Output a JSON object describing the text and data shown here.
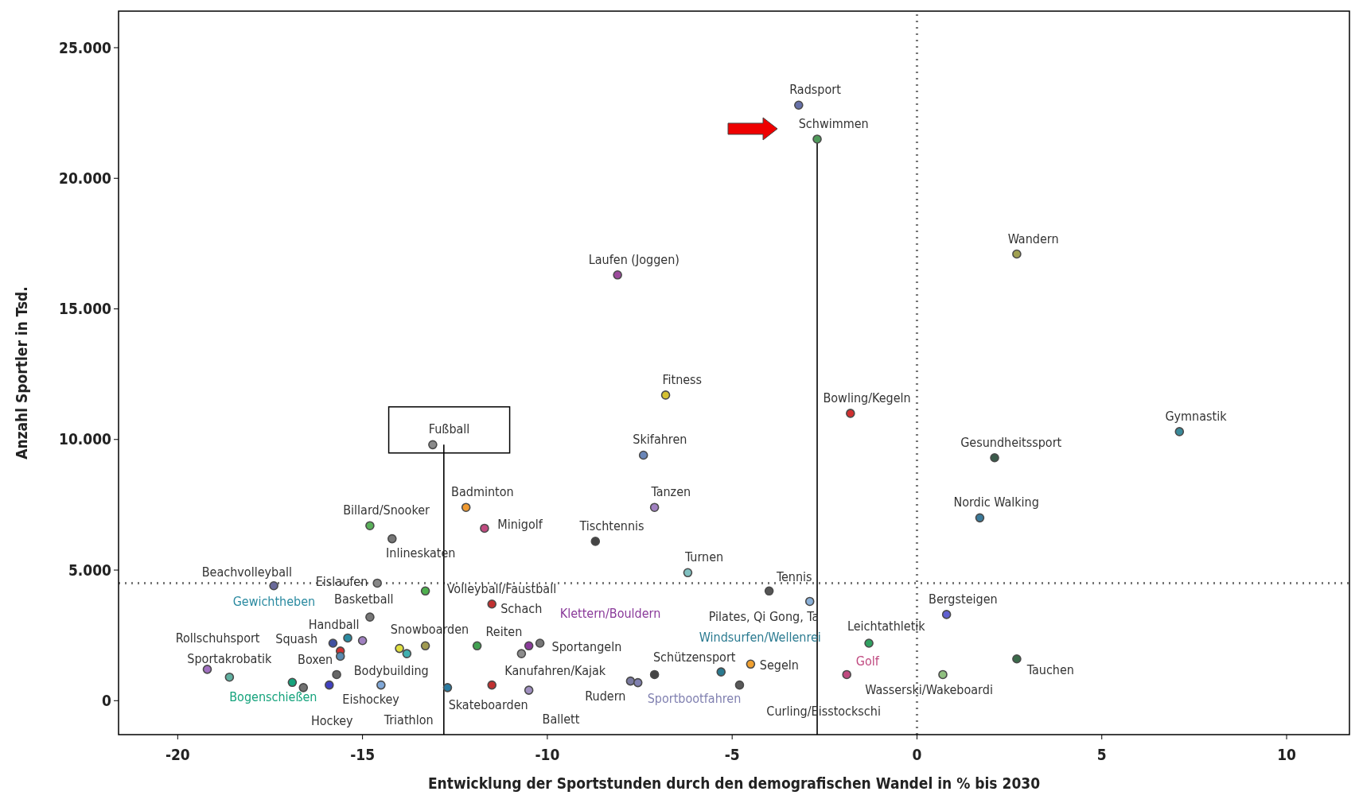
{
  "chart_data": {
    "type": "scatter",
    "xlabel": "Entwicklung der Sportstunden durch den demografischen Wandel in % bis 2030",
    "ylabel": "Anzahl Sportler in Tsd.",
    "xlim": [
      -21.6,
      11.7
    ],
    "ylim": [
      -1300,
      26400
    ],
    "xticks": [
      -20,
      -15,
      -10,
      -5,
      0,
      5,
      10
    ],
    "yticks": [
      {
        "value": 0,
        "label": "0"
      },
      {
        "value": 5000,
        "label": "5.000"
      },
      {
        "value": 10000,
        "label": "10.000"
      },
      {
        "value": 15000,
        "label": "15.000"
      },
      {
        "value": 20000,
        "label": "20.000"
      },
      {
        "value": 25000,
        "label": "25.000"
      }
    ],
    "marker": "circle",
    "grid": false,
    "legend": false,
    "ref_lines": [
      {
        "axis": "y",
        "value": 4500,
        "color": "#777777",
        "line_style": "dotted"
      },
      {
        "axis": "x",
        "value": 0,
        "color": "#777777",
        "line_style": "dotted"
      },
      {
        "axis": "x",
        "value": -12.8,
        "color": "#000000",
        "line_style": "solid"
      },
      {
        "axis": "x",
        "value": -2.7,
        "color": "#000000",
        "line_style": "solid"
      }
    ],
    "series": [
      {
        "name": "Radsport",
        "color": "#6670a8",
        "x": [
          -3.2
        ],
        "values": [
          22800
        ]
      },
      {
        "name": "Schwimmen",
        "color": "#4e9a5a",
        "x": [
          -2.7
        ],
        "values": [
          21500
        ]
      },
      {
        "name": "Wandern",
        "color": "#a0a050",
        "x": [
          2.7
        ],
        "values": [
          17100
        ]
      },
      {
        "name": "Laufen (Joggen)",
        "color": "#9c4a9c",
        "x": [
          -8.1
        ],
        "values": [
          16300
        ]
      },
      {
        "name": "Fitness",
        "color": "#d4c030",
        "x": [
          -6.8
        ],
        "values": [
          11700
        ]
      },
      {
        "name": "Bowling/Kegeln",
        "color": "#d03030",
        "x": [
          -1.8
        ],
        "values": [
          11000
        ]
      },
      {
        "name": "Gymnastik",
        "color": "#3a8a9a",
        "x": [
          7.1
        ],
        "values": [
          10300
        ]
      },
      {
        "name": "Skifahren",
        "color": "#6a86b8",
        "x": [
          -7.4
        ],
        "values": [
          9400
        ]
      },
      {
        "name": "Fußball",
        "color": "#8a8a8a",
        "x": [
          -13.1
        ],
        "values": [
          9800
        ]
      },
      {
        "name": "Gesundheitssport",
        "color": "#3a5a4a",
        "x": [
          2.1
        ],
        "values": [
          9300
        ]
      },
      {
        "name": "Nordic Walking",
        "color": "#3a7a9a",
        "x": [
          1.7
        ],
        "values": [
          7000
        ]
      },
      {
        "name": "Badminton",
        "color": "#f09a30",
        "x": [
          -12.2
        ],
        "values": [
          7400
        ]
      },
      {
        "name": "Tanzen",
        "color": "#a080c0",
        "x": [
          -7.1
        ],
        "values": [
          7400
        ]
      },
      {
        "name": "Minigolf",
        "color": "#c04a80",
        "x": [
          -11.7
        ],
        "values": [
          6600
        ]
      },
      {
        "name": "Billard/Snooker",
        "color": "#5ab05a",
        "x": [
          -14.8
        ],
        "values": [
          6700
        ]
      },
      {
        "name": "Inlineskaten",
        "color": "#777777",
        "x": [
          -14.2
        ],
        "values": [
          6200
        ]
      },
      {
        "name": "Tischtennis",
        "color": "#444444",
        "x": [
          -8.7
        ],
        "values": [
          6100
        ]
      },
      {
        "name": "Turnen",
        "color": "#80c0c0",
        "x": [
          -6.2
        ],
        "values": [
          4900
        ]
      },
      {
        "name": "Beachvolleyball",
        "color": "#6a6a9a",
        "x": [
          -17.4
        ],
        "values": [
          4400
        ]
      },
      {
        "name": "Eislaufen",
        "color": "#888888",
        "x": [
          -14.6
        ],
        "values": [
          4500
        ]
      },
      {
        "name": "Volleyball/Faustball",
        "color": "#4eb04e",
        "x": [
          -13.3
        ],
        "values": [
          4200
        ]
      },
      {
        "name": "Tennis",
        "color": "#555555",
        "x": [
          -4.0
        ],
        "values": [
          4200
        ]
      },
      {
        "name": "Pilates, Qi Gong, Ta",
        "color": "#8ab0d8",
        "x": [
          -2.9
        ],
        "values": [
          3800
        ]
      },
      {
        "name": "Schach",
        "color": "#c03030",
        "x": [
          -11.5
        ],
        "values": [
          3700
        ]
      },
      {
        "name": "Bergsteigen",
        "color": "#6060d0",
        "x": [
          0.8
        ],
        "values": [
          3300
        ]
      },
      {
        "name": "Basketball",
        "color": "#777777",
        "x": [
          -14.8
        ],
        "values": [
          3200
        ]
      },
      {
        "name": "Squash",
        "color": "#4050a0",
        "x": [
          -15.8
        ],
        "values": [
          2200
        ]
      },
      {
        "name": "Gewichtheben",
        "color": "#2a8aa0",
        "x": [
          -15.4
        ],
        "values": [
          2400
        ]
      },
      {
        "name": "Handball",
        "color": "#a080c0",
        "x": [
          -15.0
        ],
        "values": [
          2300
        ]
      },
      {
        "color": "#d03030",
        "x": [
          -15.6
        ],
        "values": [
          1900
        ]
      },
      {
        "name": "Boxen",
        "color": "#5a8ab0",
        "x": [
          -15.6
        ],
        "values": [
          1700
        ]
      },
      {
        "color": "#e0e040",
        "x": [
          -14.0
        ],
        "values": [
          2000
        ]
      },
      {
        "color": "#40b0b0",
        "x": [
          -13.8
        ],
        "values": [
          1800
        ]
      },
      {
        "name": "Snowboarden",
        "color": "#a09a50",
        "x": [
          -13.3
        ],
        "values": [
          2100
        ]
      },
      {
        "name": "Reiten",
        "color": "#40a050",
        "x": [
          -11.9
        ],
        "values": [
          2100
        ]
      },
      {
        "name": "Klettern/Bouldern",
        "color": "#8a3a9a",
        "x": [
          -10.5
        ],
        "values": [
          2100
        ]
      },
      {
        "name": "Sportangeln",
        "color": "#767676",
        "x": [
          -10.2
        ],
        "values": [
          2200
        ]
      },
      {
        "color": "#8c8c8c",
        "x": [
          -10.7
        ],
        "values": [
          1800
        ]
      },
      {
        "name": "Rollschuhsport",
        "color": "#a070c0",
        "x": [
          -19.2
        ],
        "values": [
          1200
        ]
      },
      {
        "name": "Sportakrobatik",
        "color": "#60b0a0",
        "x": [
          -18.6
        ],
        "values": [
          900
        ]
      },
      {
        "name": "Bogenschießen",
        "color": "#15a37c",
        "x": [
          -16.9
        ],
        "values": [
          700
        ]
      },
      {
        "name": "Hockey",
        "color": "#727272",
        "x": [
          -16.6
        ],
        "values": [
          500
        ]
      },
      {
        "name": "Bodybuilding",
        "color": "#666666",
        "x": [
          -15.7
        ],
        "values": [
          1000
        ]
      },
      {
        "name": "Eishockey",
        "color": "#4040c0",
        "x": [
          -15.9
        ],
        "values": [
          600
        ]
      },
      {
        "name": "Triathlon",
        "color": "#80a8d8",
        "x": [
          -14.5
        ],
        "values": [
          600
        ]
      },
      {
        "name": "Skateboarden",
        "color": "#2a7aa0",
        "x": [
          -12.7
        ],
        "values": [
          500
        ]
      },
      {
        "name": "Kanufahren/Kajak",
        "color": "#c03030",
        "x": [
          -11.5
        ],
        "values": [
          600
        ]
      },
      {
        "name": "Ballett",
        "color": "#a090c0",
        "x": [
          -10.5
        ],
        "values": [
          400
        ]
      },
      {
        "name": "Schützensport",
        "color": "#444444",
        "x": [
          -7.1
        ],
        "values": [
          1000
        ]
      },
      {
        "name": "Rudern",
        "color": "#7a7aa0",
        "x": [
          -7.75
        ],
        "values": [
          750
        ]
      },
      {
        "name": "Sportbootfahren",
        "color": "#8080b0",
        "x": [
          -7.55
        ],
        "values": [
          690
        ]
      },
      {
        "name": "Windsurfen/Wellenrei",
        "color": "#2a7a90",
        "x": [
          -5.3
        ],
        "values": [
          1100
        ]
      },
      {
        "name": "Segeln",
        "color": "#f0a030",
        "x": [
          -4.5
        ],
        "values": [
          1400
        ]
      },
      {
        "name": "Curling/Eisstockschi",
        "color": "#595959",
        "x": [
          -4.8
        ],
        "values": [
          600
        ]
      },
      {
        "name": "Leichtathletik",
        "color": "#30a060",
        "x": [
          -1.3
        ],
        "values": [
          2200
        ]
      },
      {
        "name": "Golf",
        "color": "#c04a80",
        "x": [
          -1.9
        ],
        "values": [
          1000
        ]
      },
      {
        "name": "Wasserski/Wakeboardi",
        "color": "#90c080",
        "x": [
          0.7
        ],
        "values": [
          1000
        ]
      },
      {
        "name": "Tauchen",
        "color": "#3a6a4a",
        "x": [
          2.7
        ],
        "values": [
          1600
        ]
      }
    ]
  }
}
